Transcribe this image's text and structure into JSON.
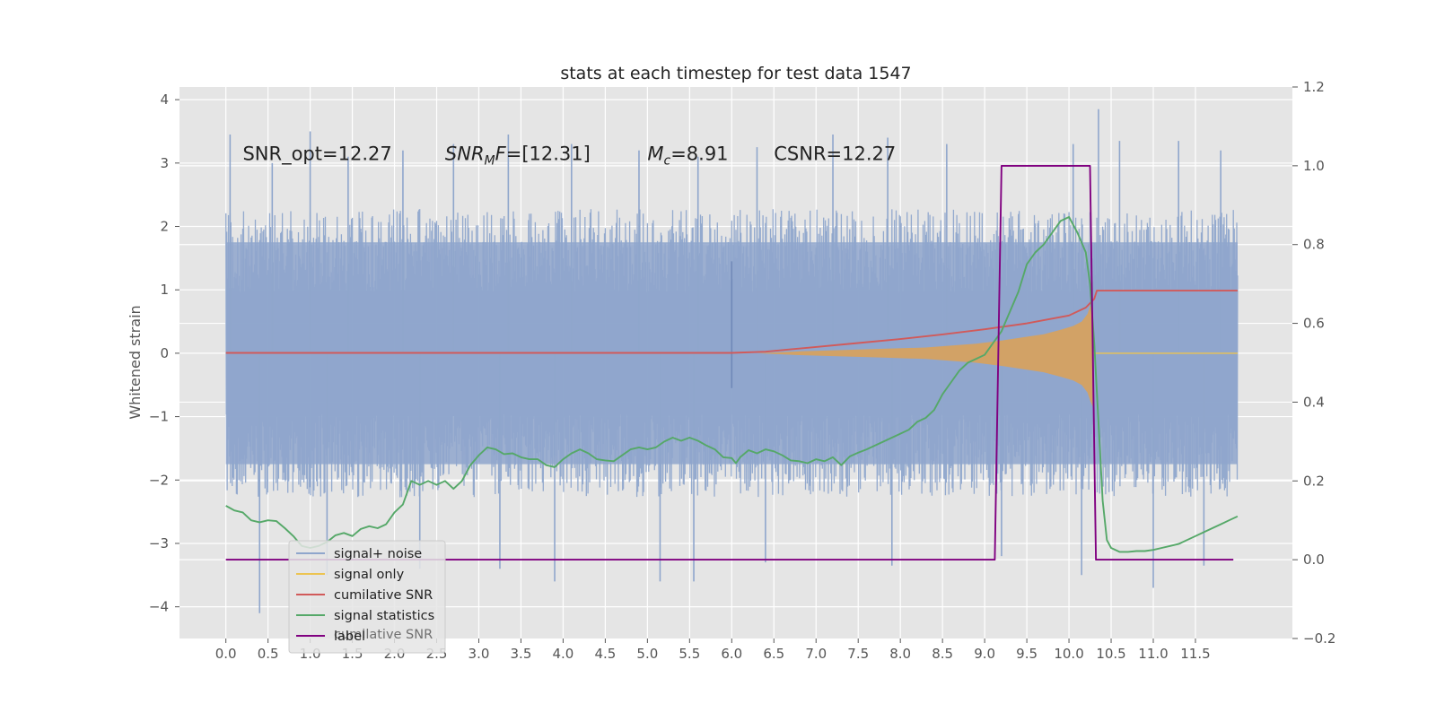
{
  "chart_data": {
    "type": "line",
    "title": "stats at each timestep for test data 1547",
    "ylabel": "Whitened strain",
    "xlim": [
      -0.55,
      12.65
    ],
    "ylim": [
      -4.5,
      4.2
    ],
    "y2lim": [
      -0.2,
      1.2
    ],
    "x_ticks": [
      0.0,
      0.5,
      1.0,
      1.5,
      2.0,
      2.5,
      3.0,
      3.5,
      4.0,
      4.5,
      5.0,
      5.5,
      6.0,
      6.5,
      7.0,
      7.5,
      8.0,
      8.5,
      9.0,
      9.5,
      10.0,
      10.5,
      11.0,
      11.5
    ],
    "x_tick_labels": [
      "0.0",
      "0.5",
      "1.0",
      "1.5",
      "2.0",
      "2.5",
      "3.0",
      "3.5",
      "4.0",
      "4.5",
      "5.0",
      "5.5",
      "6.0",
      "6.5",
      "7.0",
      "7.5",
      "8.0",
      "8.5",
      "9.0",
      "9.5",
      "10.0",
      "10.5",
      "11.0",
      "11.5"
    ],
    "y_ticks": [
      -4,
      -3,
      -2,
      -1,
      0,
      1,
      2,
      3,
      4
    ],
    "y_tick_labels": [
      "−4",
      "−3",
      "−2",
      "−1",
      "0",
      "1",
      "2",
      "3",
      "4"
    ],
    "y2_ticks": [
      -0.2,
      0.0,
      0.2,
      0.4,
      0.6,
      0.8,
      1.0,
      1.2
    ],
    "y2_tick_labels": [
      "−0.2",
      "0.0",
      "0.2",
      "0.4",
      "0.6",
      "0.8",
      "1.0",
      "1.2"
    ],
    "grid": true,
    "legend_position": "lower-left",
    "annotations": [
      {
        "name": "snr-opt",
        "x": 0.2,
        "y": 3.05,
        "text": "SNR_opt=12.27"
      },
      {
        "name": "snr-mf",
        "x": 2.6,
        "y": 3.05,
        "prefix": "SNR",
        "subscript": "M",
        "middle": "F",
        "suffix": "=[12.31]"
      },
      {
        "name": "chirp-mass",
        "x": 5.0,
        "y": 3.05,
        "prefix": "M",
        "subscript": "c",
        "suffix": "=8.91"
      },
      {
        "name": "csnr",
        "x": 6.5,
        "y": 3.05,
        "text": "CSNR=12.27"
      }
    ],
    "legend_entries": [
      {
        "label": "signal+ noise",
        "color": "#8fa6cc"
      },
      {
        "label": "signal only",
        "color": "#ecc451"
      },
      {
        "label": "cumilative SNR",
        "color": "#d15a5a"
      },
      {
        "label": "signal statistics",
        "color": "#55a868"
      },
      {
        "label": "label",
        "color": "#800080"
      }
    ],
    "legend_ghost_text": "cumilative SNR",
    "series": [
      {
        "name": "signal+ noise",
        "axis": "left",
        "color": "#8fa6cc",
        "x_range": [
          0.0,
          12.0
        ],
        "upper_band": [
          1.75,
          1.75
        ],
        "lower_band": [
          -1.75,
          -1.75
        ],
        "upper_extremes": [
          [
            0.05,
            3.45
          ],
          [
            0.55,
            3.0
          ],
          [
            1.0,
            3.5
          ],
          [
            1.45,
            3.1
          ],
          [
            2.1,
            3.2
          ],
          [
            2.7,
            3.3
          ],
          [
            3.35,
            3.45
          ],
          [
            4.1,
            3.3
          ],
          [
            4.9,
            3.2
          ],
          [
            5.6,
            3.1
          ],
          [
            6.3,
            3.25
          ],
          [
            7.2,
            3.45
          ],
          [
            7.85,
            3.4
          ],
          [
            8.55,
            3.3
          ],
          [
            10.05,
            3.3
          ],
          [
            10.35,
            3.85
          ],
          [
            10.6,
            3.35
          ],
          [
            11.3,
            3.35
          ],
          [
            11.8,
            3.2
          ]
        ],
        "lower_extremes": [
          [
            0.4,
            -4.1
          ],
          [
            1.2,
            -3.5
          ],
          [
            2.3,
            -3.4
          ],
          [
            3.25,
            -3.4
          ],
          [
            3.9,
            -3.6
          ],
          [
            5.15,
            -3.6
          ],
          [
            5.55,
            -3.6
          ],
          [
            6.4,
            -3.3
          ],
          [
            7.9,
            -3.35
          ],
          [
            9.2,
            -3.2
          ],
          [
            10.15,
            -3.5
          ],
          [
            11.0,
            -3.7
          ],
          [
            11.6,
            -3.35
          ]
        ],
        "feature": {
          "x": 6.0,
          "ymin": -0.55,
          "ymax": 1.45
        }
      },
      {
        "name": "signal only",
        "axis": "left",
        "color": "#ecc451",
        "fill_color": "#d9a25b",
        "envelope": [
          [
            6.3,
            0.0
          ],
          [
            6.8,
            0.03
          ],
          [
            7.3,
            0.05
          ],
          [
            7.8,
            0.07
          ],
          [
            8.3,
            0.09
          ],
          [
            8.6,
            0.12
          ],
          [
            8.9,
            0.15
          ],
          [
            9.2,
            0.2
          ],
          [
            9.5,
            0.26
          ],
          [
            9.7,
            0.3
          ],
          [
            9.9,
            0.37
          ],
          [
            10.05,
            0.43
          ],
          [
            10.15,
            0.5
          ],
          [
            10.22,
            0.62
          ],
          [
            10.25,
            0.74
          ],
          [
            10.28,
            0.84
          ]
        ],
        "tail_to": 12.0
      },
      {
        "name": "cumilative SNR",
        "axis": "right",
        "color": "#d15a5a",
        "points": [
          [
            0.0,
            0.525
          ],
          [
            6.0,
            0.525
          ],
          [
            6.4,
            0.528
          ],
          [
            7.0,
            0.54
          ],
          [
            7.5,
            0.55
          ],
          [
            8.0,
            0.56
          ],
          [
            8.5,
            0.572
          ],
          [
            9.0,
            0.585
          ],
          [
            9.5,
            0.6
          ],
          [
            10.0,
            0.62
          ],
          [
            10.2,
            0.64
          ],
          [
            10.3,
            0.662
          ],
          [
            10.33,
            0.683
          ],
          [
            12.0,
            0.683
          ]
        ]
      },
      {
        "name": "signal statistics",
        "axis": "right",
        "color": "#55a868",
        "points": [
          [
            0.0,
            0.137
          ],
          [
            0.1,
            0.125
          ],
          [
            0.2,
            0.12
          ],
          [
            0.3,
            0.1
          ],
          [
            0.4,
            0.095
          ],
          [
            0.5,
            0.1
          ],
          [
            0.6,
            0.098
          ],
          [
            0.7,
            0.08
          ],
          [
            0.8,
            0.06
          ],
          [
            0.9,
            0.035
          ],
          [
            1.0,
            0.03
          ],
          [
            1.1,
            0.035
          ],
          [
            1.2,
            0.045
          ],
          [
            1.3,
            0.062
          ],
          [
            1.4,
            0.068
          ],
          [
            1.5,
            0.06
          ],
          [
            1.6,
            0.078
          ],
          [
            1.7,
            0.085
          ],
          [
            1.8,
            0.08
          ],
          [
            1.9,
            0.09
          ],
          [
            2.0,
            0.12
          ],
          [
            2.1,
            0.14
          ],
          [
            2.2,
            0.2
          ],
          [
            2.3,
            0.19
          ],
          [
            2.4,
            0.2
          ],
          [
            2.5,
            0.19
          ],
          [
            2.6,
            0.2
          ],
          [
            2.7,
            0.18
          ],
          [
            2.8,
            0.2
          ],
          [
            2.9,
            0.24
          ],
          [
            3.0,
            0.265
          ],
          [
            3.1,
            0.285
          ],
          [
            3.2,
            0.28
          ],
          [
            3.3,
            0.268
          ],
          [
            3.4,
            0.27
          ],
          [
            3.5,
            0.26
          ],
          [
            3.6,
            0.255
          ],
          [
            3.7,
            0.255
          ],
          [
            3.8,
            0.24
          ],
          [
            3.9,
            0.235
          ],
          [
            4.0,
            0.255
          ],
          [
            4.1,
            0.27
          ],
          [
            4.2,
            0.28
          ],
          [
            4.3,
            0.27
          ],
          [
            4.4,
            0.255
          ],
          [
            4.5,
            0.252
          ],
          [
            4.6,
            0.25
          ],
          [
            4.7,
            0.265
          ],
          [
            4.8,
            0.28
          ],
          [
            4.9,
            0.285
          ],
          [
            5.0,
            0.28
          ],
          [
            5.1,
            0.285
          ],
          [
            5.2,
            0.3
          ],
          [
            5.3,
            0.31
          ],
          [
            5.4,
            0.302
          ],
          [
            5.5,
            0.31
          ],
          [
            5.6,
            0.302
          ],
          [
            5.7,
            0.29
          ],
          [
            5.8,
            0.28
          ],
          [
            5.9,
            0.26
          ],
          [
            6.0,
            0.258
          ],
          [
            6.05,
            0.245
          ],
          [
            6.1,
            0.26
          ],
          [
            6.2,
            0.278
          ],
          [
            6.3,
            0.27
          ],
          [
            6.4,
            0.28
          ],
          [
            6.5,
            0.275
          ],
          [
            6.6,
            0.265
          ],
          [
            6.7,
            0.252
          ],
          [
            6.8,
            0.25
          ],
          [
            6.9,
            0.245
          ],
          [
            7.0,
            0.255
          ],
          [
            7.1,
            0.25
          ],
          [
            7.2,
            0.26
          ],
          [
            7.3,
            0.24
          ],
          [
            7.4,
            0.262
          ],
          [
            7.5,
            0.272
          ],
          [
            7.6,
            0.28
          ],
          [
            7.7,
            0.29
          ],
          [
            7.8,
            0.3
          ],
          [
            7.9,
            0.31
          ],
          [
            8.0,
            0.32
          ],
          [
            8.1,
            0.33
          ],
          [
            8.2,
            0.35
          ],
          [
            8.3,
            0.36
          ],
          [
            8.4,
            0.38
          ],
          [
            8.5,
            0.42
          ],
          [
            8.6,
            0.45
          ],
          [
            8.7,
            0.48
          ],
          [
            8.8,
            0.5
          ],
          [
            8.9,
            0.51
          ],
          [
            9.0,
            0.52
          ],
          [
            9.1,
            0.55
          ],
          [
            9.2,
            0.58
          ],
          [
            9.3,
            0.63
          ],
          [
            9.4,
            0.68
          ],
          [
            9.5,
            0.75
          ],
          [
            9.6,
            0.78
          ],
          [
            9.7,
            0.8
          ],
          [
            9.8,
            0.83
          ],
          [
            9.9,
            0.86
          ],
          [
            10.0,
            0.87
          ],
          [
            10.1,
            0.83
          ],
          [
            10.2,
            0.78
          ],
          [
            10.25,
            0.7
          ],
          [
            10.3,
            0.55
          ],
          [
            10.35,
            0.35
          ],
          [
            10.4,
            0.15
          ],
          [
            10.45,
            0.05
          ],
          [
            10.5,
            0.03
          ],
          [
            10.6,
            0.02
          ],
          [
            10.7,
            0.02
          ],
          [
            10.8,
            0.022
          ],
          [
            10.9,
            0.022
          ],
          [
            11.0,
            0.025
          ],
          [
            11.1,
            0.03
          ],
          [
            11.2,
            0.035
          ],
          [
            11.3,
            0.04
          ],
          [
            11.4,
            0.05
          ],
          [
            11.5,
            0.06
          ],
          [
            11.6,
            0.07
          ],
          [
            11.7,
            0.08
          ],
          [
            11.8,
            0.09
          ],
          [
            11.9,
            0.1
          ],
          [
            12.0,
            0.11
          ]
        ]
      },
      {
        "name": "label",
        "axis": "right",
        "color": "#800080",
        "points": [
          [
            0.0,
            0.0
          ],
          [
            9.12,
            0.0
          ],
          [
            9.2,
            1.0
          ],
          [
            10.25,
            1.0
          ],
          [
            10.32,
            0.0
          ],
          [
            11.95,
            0.0
          ]
        ]
      }
    ]
  }
}
